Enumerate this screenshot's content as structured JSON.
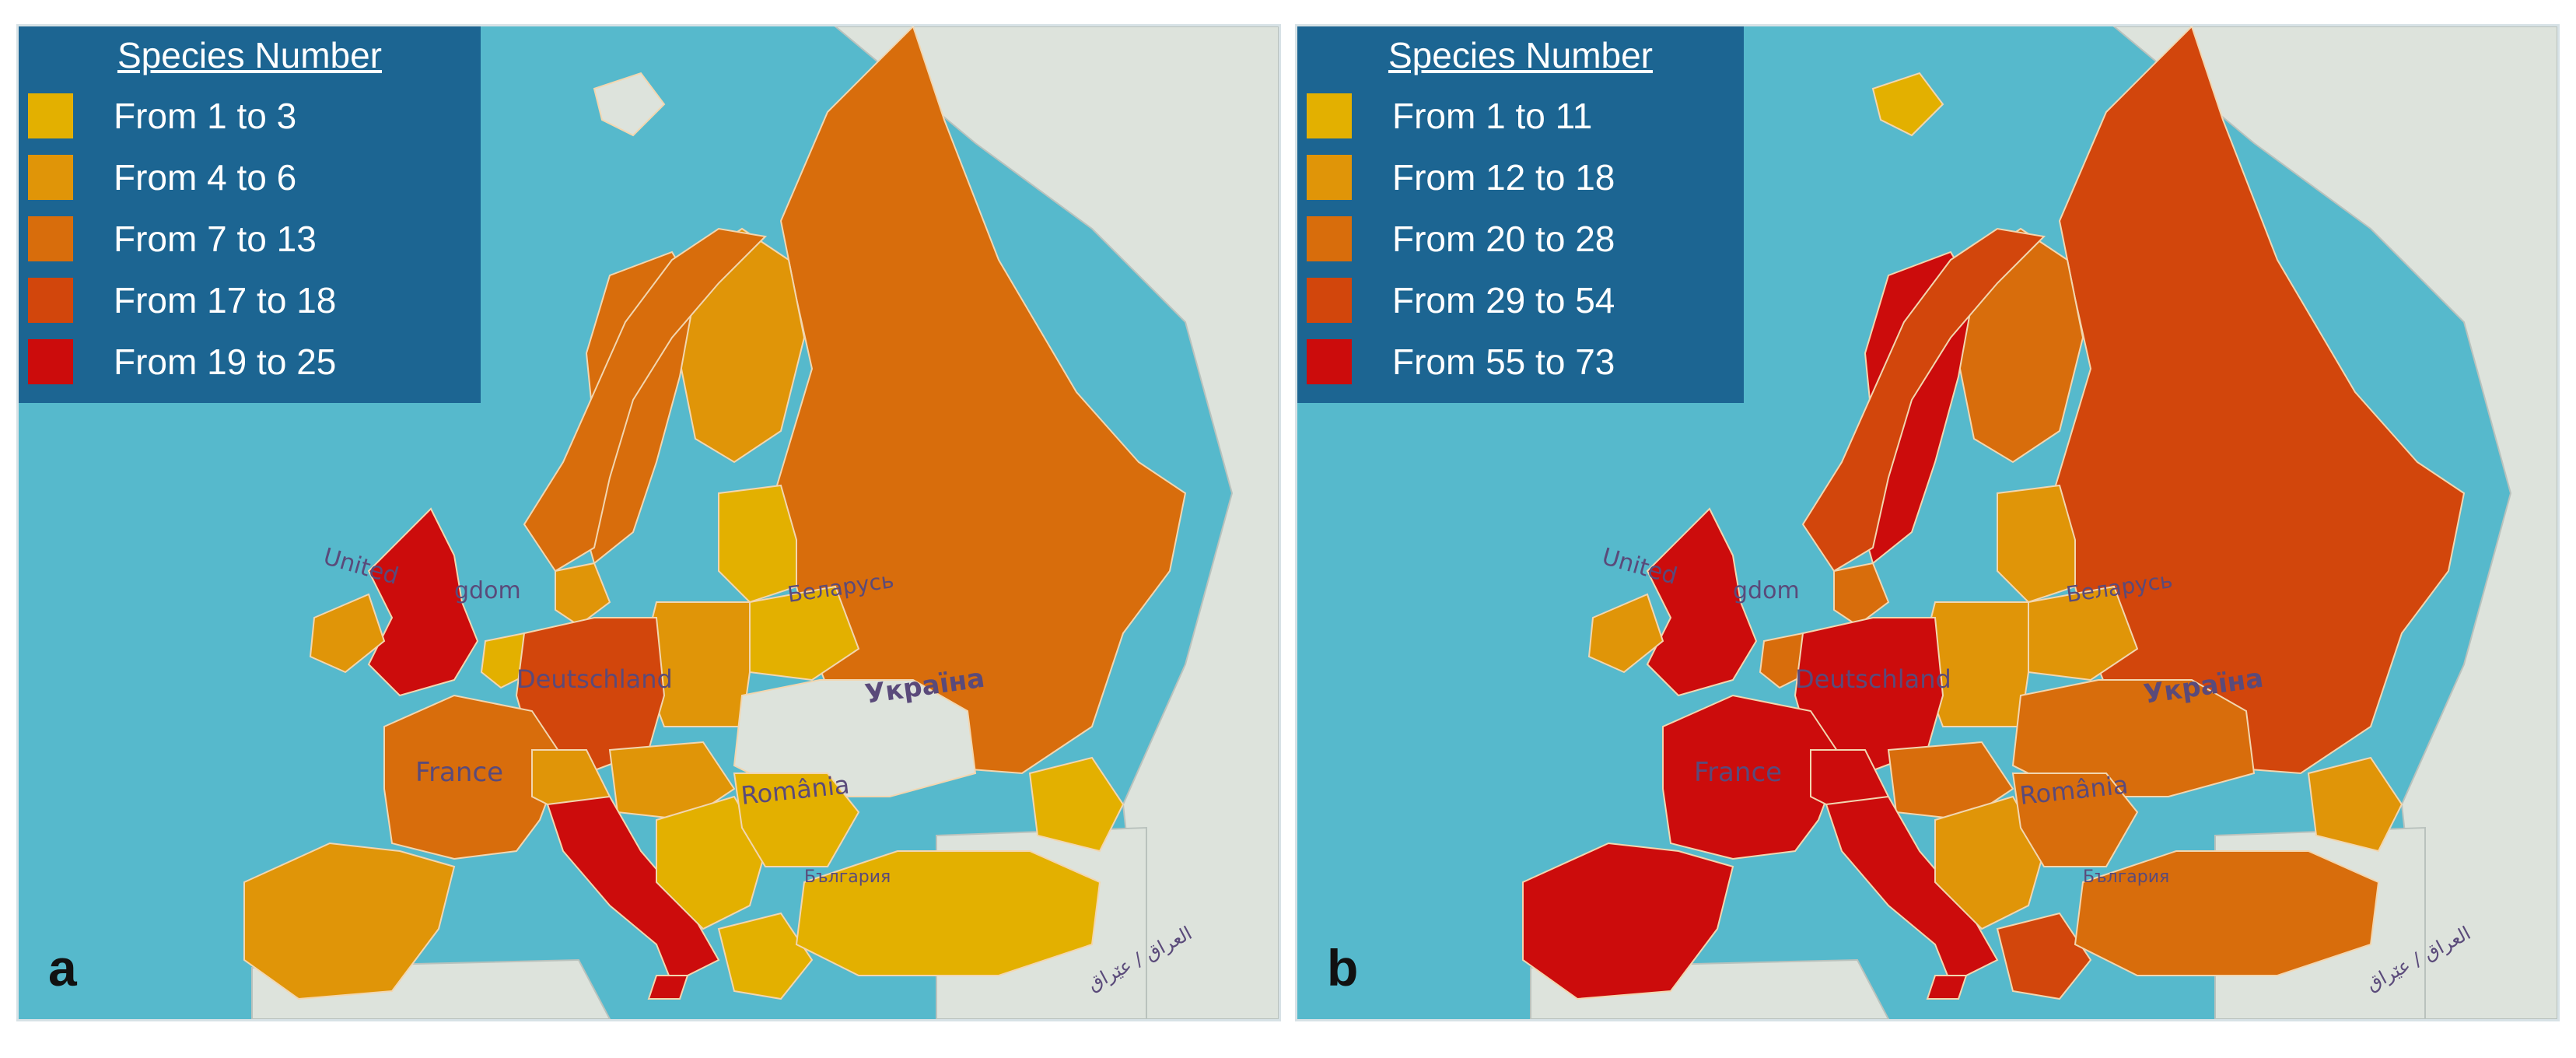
{
  "panels": [
    {
      "letter": "a",
      "legend": {
        "title": "Species Number",
        "items": [
          {
            "label": "From 1 to 3",
            "color": "#e3b000"
          },
          {
            "label": "From 4 to 6",
            "color": "#e09508"
          },
          {
            "label": "From 7 to 13",
            "color": "#d86d0c"
          },
          {
            "label": "From 17 to 18",
            "color": "#d2460c"
          },
          {
            "label": "From 19 to 25",
            "color": "#cc0c0c"
          }
        ]
      },
      "map_labels": {
        "uk_left": "United",
        "uk_right": "gdom",
        "germany": "Deutschland",
        "france": "France",
        "belarus": "Беларусь",
        "ukraine": "Україна",
        "romania": "România",
        "bulgaria": "България",
        "iraq": "العراق / عێراق"
      }
    },
    {
      "letter": "b",
      "legend": {
        "title": "Species Number",
        "items": [
          {
            "label": "From 1 to 11",
            "color": "#e3b000"
          },
          {
            "label": "From 12 to 18",
            "color": "#e09508"
          },
          {
            "label": "From 20 to 28",
            "color": "#d86d0c"
          },
          {
            "label": "From 29 to 54",
            "color": "#d2460c"
          },
          {
            "label": "From 55 to 73",
            "color": "#cc0c0c"
          }
        ]
      },
      "map_labels": {
        "uk_left": "United",
        "uk_right": "gdom",
        "germany": "Deutschland",
        "france": "France",
        "belarus": "Беларусь",
        "ukraine": "Україна",
        "romania": "România",
        "bulgaria": "България",
        "iraq": "العراق / عێراق"
      }
    }
  ],
  "colors": {
    "sea": "#56b9cc",
    "land_unmapped": "#dde3dc",
    "class1": "#e3b000",
    "class2": "#e09508",
    "class3": "#d86d0c",
    "class4": "#d2460c",
    "class5": "#cc0c0c"
  },
  "region_classes": {
    "panel_a": {
      "uk": 5,
      "ireland": 2,
      "iceland_svalbard": 0,
      "norway": 3,
      "sweden": 3,
      "finland": 2,
      "russia": 3,
      "baltics": 1,
      "poland": 2,
      "germany": 4,
      "netherlands": 1,
      "denmark": 2,
      "france": 3,
      "iberia": 2,
      "italy": 5,
      "alps": 2,
      "austria_hungary": 2,
      "balkans": 1,
      "ukraine": 0,
      "romania": 1,
      "belarus": 1,
      "turkey": 1,
      "greece": 1,
      "caucasus": 1
    },
    "panel_b": {
      "uk": 5,
      "ireland": 2,
      "iceland_svalbard": 1,
      "norway": 4,
      "sweden": 5,
      "finland": 3,
      "russia": 4,
      "baltics": 2,
      "poland": 2,
      "germany": 5,
      "netherlands": 3,
      "denmark": 3,
      "france": 5,
      "iberia": 5,
      "italy": 5,
      "alps": 5,
      "austria_hungary": 3,
      "balkans": 2,
      "ukraine": 3,
      "romania": 3,
      "belarus": 2,
      "turkey": 3,
      "greece": 4,
      "caucasus": 2
    }
  }
}
